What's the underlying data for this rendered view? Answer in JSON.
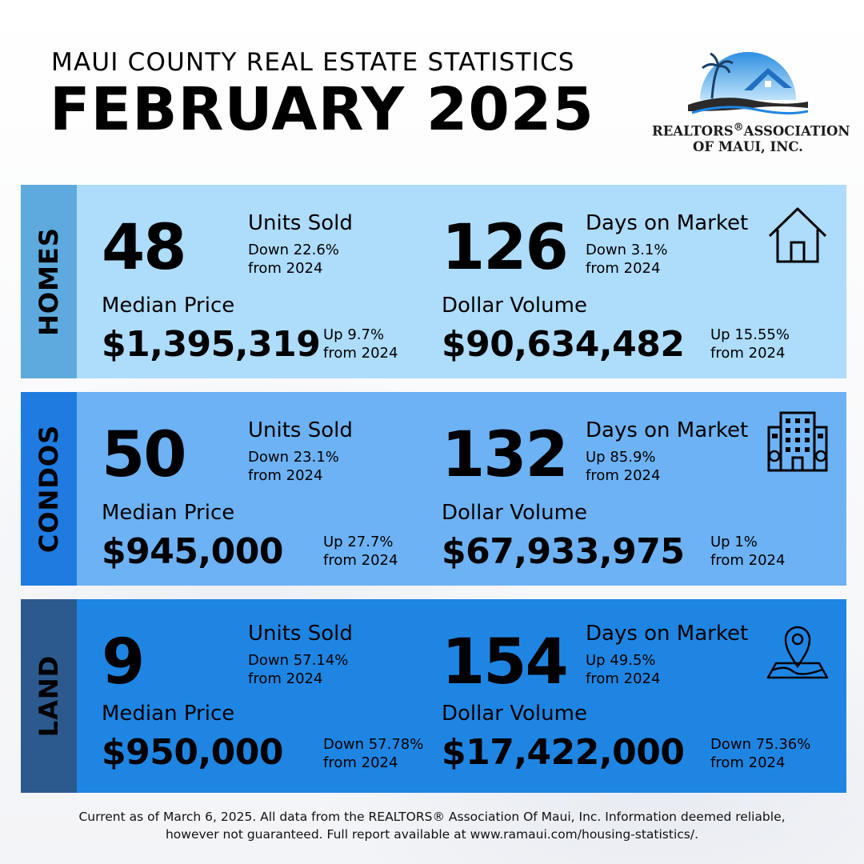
{
  "header": {
    "subtitle": "MAUI COUNTY REAL ESTATE STATISTICS",
    "title": "FEBRUARY 2025"
  },
  "logo": {
    "line1_a": "REALTORS",
    "line1_reg": "®",
    "line1_b": "ASSOCIATION",
    "line2": "OF MAUI, INC."
  },
  "sections": [
    {
      "name": "HOMES",
      "units_sold": "48",
      "units_label": "Units Sold",
      "units_change_1": "Down 22.6%",
      "units_change_2": "from 2024",
      "dom": "126",
      "dom_label": "Days on Market",
      "dom_change_1": "Down 3.1%",
      "dom_change_2": "from 2024",
      "median_label": "Median Price",
      "median_price": "$1,395,319",
      "median_change_1": "Up 9.7%",
      "median_change_2": "from 2024",
      "volume_label": "Dollar Volume",
      "volume": "$90,634,482",
      "volume_change_1": "Up 15.55%",
      "volume_change_2": "from 2024",
      "icon": "house-icon"
    },
    {
      "name": "CONDOS",
      "units_sold": "50",
      "units_label": "Units Sold",
      "units_change_1": "Down 23.1%",
      "units_change_2": "from 2024",
      "dom": "132",
      "dom_label": "Days on Market",
      "dom_change_1": "Up 85.9%",
      "dom_change_2": "from 2024",
      "median_label": "Median Price",
      "median_price": "$945,000",
      "median_change_1": "Up 27.7%",
      "median_change_2": "from 2024",
      "volume_label": "Dollar Volume",
      "volume": "$67,933,975",
      "volume_change_1": "Up 1%",
      "volume_change_2": "from 2024",
      "icon": "building-icon"
    },
    {
      "name": "LAND",
      "units_sold": "9",
      "units_label": "Units Sold",
      "units_change_1": "Down 57.14%",
      "units_change_2": "from 2024",
      "dom": "154",
      "dom_label": "Days on Market",
      "dom_change_1": "Up 49.5%",
      "dom_change_2": "from 2024",
      "median_label": "Median Price",
      "median_price": "$950,000",
      "median_change_1": "Down 57.78%",
      "median_change_2": "from 2024",
      "volume_label": "Dollar Volume",
      "volume": "$17,422,000",
      "volume_change_1": "Down 75.36%",
      "volume_change_2": "from 2024",
      "icon": "map-pin-icon"
    }
  ],
  "footer": {
    "line1": "Current as of March 6, 2025. All data from the REALTORS® Association Of Maui, Inc. Information deemed reliable,",
    "line2": "however not guaranteed. Full report available at www.ramaui.com/housing-statistics/."
  },
  "colors": {
    "homes_tab": "#5ea9dd",
    "homes_panel": "#aedcfb",
    "condos_tab": "#1f7be0",
    "condos_panel": "#6db2f4",
    "land_tab": "#2c5a8e",
    "land_panel": "#1f85e3"
  }
}
